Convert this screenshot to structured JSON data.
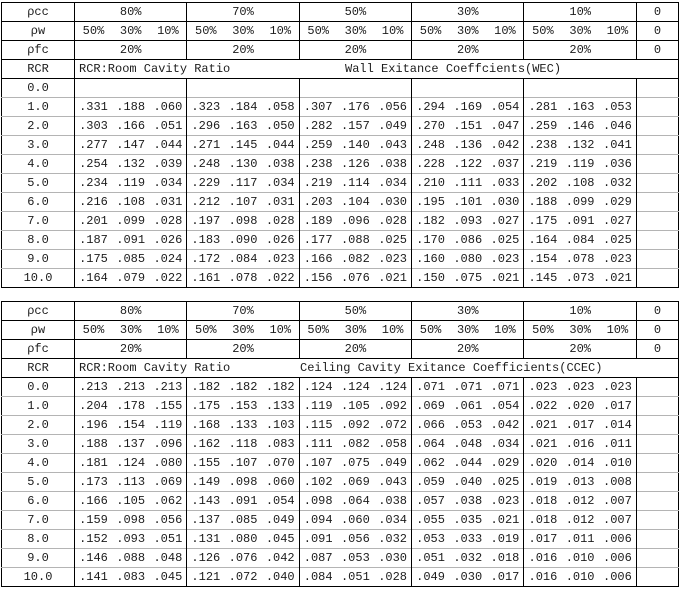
{
  "header": {
    "pcc_label": "ρcc",
    "pw_label": "ρw",
    "pfc_label": "ρfc",
    "rcr_label": "RCR",
    "pcc_values": [
      "80%",
      "70%",
      "50%",
      "30%",
      "10%"
    ],
    "pw_values": [
      "50%",
      "30%",
      "10%"
    ],
    "pfc_value": "20%",
    "zero_value": "0"
  },
  "tables": [
    {
      "caption_left": "RCR:Room Cavity Ratio",
      "caption_right": "Wall Exitance Coeffcients(WEC)",
      "rows": [
        {
          "rcr": "0.0",
          "groups": [
            [
              "",
              "",
              ""
            ],
            [
              "",
              "",
              ""
            ],
            [
              "",
              "",
              ""
            ],
            [
              "",
              "",
              ""
            ],
            [
              "",
              "",
              ""
            ]
          ]
        },
        {
          "rcr": "1.0",
          "groups": [
            [
              ".331",
              ".188",
              ".060"
            ],
            [
              ".323",
              ".184",
              ".058"
            ],
            [
              ".307",
              ".176",
              ".056"
            ],
            [
              ".294",
              ".169",
              ".054"
            ],
            [
              ".281",
              ".163",
              ".053"
            ]
          ]
        },
        {
          "rcr": "2.0",
          "groups": [
            [
              ".303",
              ".166",
              ".051"
            ],
            [
              ".296",
              ".163",
              ".050"
            ],
            [
              ".282",
              ".157",
              ".049"
            ],
            [
              ".270",
              ".151",
              ".047"
            ],
            [
              ".259",
              ".146",
              ".046"
            ]
          ]
        },
        {
          "rcr": "3.0",
          "groups": [
            [
              ".277",
              ".147",
              ".044"
            ],
            [
              ".271",
              ".145",
              ".044"
            ],
            [
              ".259",
              ".140",
              ".043"
            ],
            [
              ".248",
              ".136",
              ".042"
            ],
            [
              ".238",
              ".132",
              ".041"
            ]
          ]
        },
        {
          "rcr": "4.0",
          "groups": [
            [
              ".254",
              ".132",
              ".039"
            ],
            [
              ".248",
              ".130",
              ".038"
            ],
            [
              ".238",
              ".126",
              ".038"
            ],
            [
              ".228",
              ".122",
              ".037"
            ],
            [
              ".219",
              ".119",
              ".036"
            ]
          ]
        },
        {
          "rcr": "5.0",
          "groups": [
            [
              ".234",
              ".119",
              ".034"
            ],
            [
              ".229",
              ".117",
              ".034"
            ],
            [
              ".219",
              ".114",
              ".034"
            ],
            [
              ".210",
              ".111",
              ".033"
            ],
            [
              ".202",
              ".108",
              ".032"
            ]
          ]
        },
        {
          "rcr": "6.0",
          "groups": [
            [
              ".216",
              ".108",
              ".031"
            ],
            [
              ".212",
              ".107",
              ".031"
            ],
            [
              ".203",
              ".104",
              ".030"
            ],
            [
              ".195",
              ".101",
              ".030"
            ],
            [
              ".188",
              ".099",
              ".029"
            ]
          ]
        },
        {
          "rcr": "7.0",
          "groups": [
            [
              ".201",
              ".099",
              ".028"
            ],
            [
              ".197",
              ".098",
              ".028"
            ],
            [
              ".189",
              ".096",
              ".028"
            ],
            [
              ".182",
              ".093",
              ".027"
            ],
            [
              ".175",
              ".091",
              ".027"
            ]
          ]
        },
        {
          "rcr": "8.0",
          "groups": [
            [
              ".187",
              ".091",
              ".026"
            ],
            [
              ".183",
              ".090",
              ".026"
            ],
            [
              ".177",
              ".088",
              ".025"
            ],
            [
              ".170",
              ".086",
              ".025"
            ],
            [
              ".164",
              ".084",
              ".025"
            ]
          ]
        },
        {
          "rcr": "9.0",
          "groups": [
            [
              ".175",
              ".085",
              ".024"
            ],
            [
              ".172",
              ".084",
              ".023"
            ],
            [
              ".166",
              ".082",
              ".023"
            ],
            [
              ".160",
              ".080",
              ".023"
            ],
            [
              ".154",
              ".078",
              ".023"
            ]
          ]
        },
        {
          "rcr": "10.0",
          "groups": [
            [
              ".164",
              ".079",
              ".022"
            ],
            [
              ".161",
              ".078",
              ".022"
            ],
            [
              ".156",
              ".076",
              ".021"
            ],
            [
              ".150",
              ".075",
              ".021"
            ],
            [
              ".145",
              ".073",
              ".021"
            ]
          ]
        }
      ]
    },
    {
      "caption_left": "RCR:Room Cavity Ratio",
      "caption_right": "Ceiling Cavity Exitance Coefficients(CCEC)",
      "rows": [
        {
          "rcr": "0.0",
          "groups": [
            [
              ".213",
              ".213",
              ".213"
            ],
            [
              ".182",
              ".182",
              ".182"
            ],
            [
              ".124",
              ".124",
              ".124"
            ],
            [
              ".071",
              ".071",
              ".071"
            ],
            [
              ".023",
              ".023",
              ".023"
            ]
          ]
        },
        {
          "rcr": "1.0",
          "groups": [
            [
              ".204",
              ".178",
              ".155"
            ],
            [
              ".175",
              ".153",
              ".133"
            ],
            [
              ".119",
              ".105",
              ".092"
            ],
            [
              ".069",
              ".061",
              ".054"
            ],
            [
              ".022",
              ".020",
              ".017"
            ]
          ]
        },
        {
          "rcr": "2.0",
          "groups": [
            [
              ".196",
              ".154",
              ".119"
            ],
            [
              ".168",
              ".133",
              ".103"
            ],
            [
              ".115",
              ".092",
              ".072"
            ],
            [
              ".066",
              ".053",
              ".042"
            ],
            [
              ".021",
              ".017",
              ".014"
            ]
          ]
        },
        {
          "rcr": "3.0",
          "groups": [
            [
              ".188",
              ".137",
              ".096"
            ],
            [
              ".162",
              ".118",
              ".083"
            ],
            [
              ".111",
              ".082",
              ".058"
            ],
            [
              ".064",
              ".048",
              ".034"
            ],
            [
              ".021",
              ".016",
              ".011"
            ]
          ]
        },
        {
          "rcr": "4.0",
          "groups": [
            [
              ".181",
              ".124",
              ".080"
            ],
            [
              ".155",
              ".107",
              ".070"
            ],
            [
              ".107",
              ".075",
              ".049"
            ],
            [
              ".062",
              ".044",
              ".029"
            ],
            [
              ".020",
              ".014",
              ".010"
            ]
          ]
        },
        {
          "rcr": "5.0",
          "groups": [
            [
              ".173",
              ".113",
              ".069"
            ],
            [
              ".149",
              ".098",
              ".060"
            ],
            [
              ".102",
              ".069",
              ".043"
            ],
            [
              ".059",
              ".040",
              ".025"
            ],
            [
              ".019",
              ".013",
              ".008"
            ]
          ]
        },
        {
          "rcr": "6.0",
          "groups": [
            [
              ".166",
              ".105",
              ".062"
            ],
            [
              ".143",
              ".091",
              ".054"
            ],
            [
              ".098",
              ".064",
              ".038"
            ],
            [
              ".057",
              ".038",
              ".023"
            ],
            [
              ".018",
              ".012",
              ".007"
            ]
          ]
        },
        {
          "rcr": "7.0",
          "groups": [
            [
              ".159",
              ".098",
              ".056"
            ],
            [
              ".137",
              ".085",
              ".049"
            ],
            [
              ".094",
              ".060",
              ".034"
            ],
            [
              ".055",
              ".035",
              ".021"
            ],
            [
              ".018",
              ".012",
              ".007"
            ]
          ]
        },
        {
          "rcr": "8.0",
          "groups": [
            [
              ".152",
              ".093",
              ".051"
            ],
            [
              ".131",
              ".080",
              ".045"
            ],
            [
              ".091",
              ".056",
              ".032"
            ],
            [
              ".053",
              ".033",
              ".019"
            ],
            [
              ".017",
              ".011",
              ".006"
            ]
          ]
        },
        {
          "rcr": "9.0",
          "groups": [
            [
              ".146",
              ".088",
              ".048"
            ],
            [
              ".126",
              ".076",
              ".042"
            ],
            [
              ".087",
              ".053",
              ".030"
            ],
            [
              ".051",
              ".032",
              ".018"
            ],
            [
              ".016",
              ".010",
              ".006"
            ]
          ]
        },
        {
          "rcr": "10.0",
          "groups": [
            [
              ".141",
              ".083",
              ".045"
            ],
            [
              ".121",
              ".072",
              ".040"
            ],
            [
              ".084",
              ".051",
              ".028"
            ],
            [
              ".049",
              ".030",
              ".017"
            ],
            [
              ".016",
              ".010",
              ".006"
            ]
          ]
        }
      ]
    }
  ],
  "colors": {
    "border": "#000000",
    "row_divider": "#b4b4b4",
    "text": "#1c1c1c",
    "background": "#ffffff"
  }
}
